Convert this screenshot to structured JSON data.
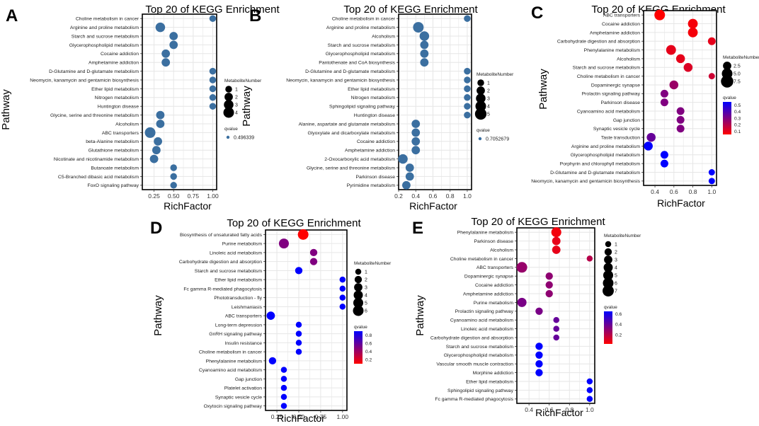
{
  "figure": {
    "panels": [
      {
        "letter": "A"
      },
      {
        "letter": "B"
      },
      {
        "letter": "C"
      },
      {
        "letter": "D"
      },
      {
        "letter": "E"
      }
    ],
    "colors": {
      "qblue": "#3b6fa0",
      "qlow": "#ff0000",
      "qhigh": "#0000ff",
      "grid": "#e6e6e6",
      "panel_bg": "#ffffff"
    }
  },
  "chart_data": [
    {
      "letter": "A",
      "type": "scatter",
      "title": "Top 20 of KEGG Enrichment",
      "xlabel": "RichFactor",
      "ylabel": "Pathway",
      "xlim": [
        0.1,
        1.05
      ],
      "xticks": [
        0.25,
        0.5,
        0.75,
        1.0
      ],
      "xtick_labels": [
        "0.25",
        "0.50",
        "0.75",
        "1.00"
      ],
      "color_mode": "single",
      "legend_size_title": "MetaboliteNumber",
      "legend_size_values": [
        1,
        2,
        3,
        4
      ],
      "legend_color_title": "qvalue",
      "legend_color_value": "0.496339",
      "pathways": [
        "Choline metabolism in cancer",
        "Arginine and proline metabolism",
        "Starch and sucrose metabolism",
        "Glycerophospholipid metabolism",
        "Cocaine addiction",
        "Amphetamine addiction",
        "D-Glutamine and D-glutamate metabolism",
        "Neomycin, kanamycin and gentamicin biosynthesis",
        "Ether lipid metabolism",
        "Nitrogen metabolism",
        "Huntington disease",
        "Glycine, serine and threonine metabolism",
        "Alcoholism",
        "ABC transporters",
        "beta-Alanine metabolism",
        "Glutathione metabolism",
        "Nicotinate and nicotinamide metabolism",
        "Butanoate metabolism",
        "C5-Branched dibasic acid metabolism",
        "FoxO signaling pathway"
      ],
      "richfactor": [
        1.0,
        0.33,
        0.5,
        0.5,
        0.4,
        0.4,
        1.0,
        1.0,
        1.0,
        1.0,
        1.0,
        0.33,
        0.33,
        0.2,
        0.3,
        0.28,
        0.25,
        0.5,
        0.5,
        0.5
      ],
      "count": [
        1,
        3,
        2,
        2,
        2,
        2,
        1,
        1,
        1,
        1,
        1,
        2,
        2,
        4,
        2,
        2,
        2,
        1,
        1,
        1
      ]
    },
    {
      "letter": "B",
      "type": "scatter",
      "title": "Top 20 of KEGG Enrichment",
      "xlabel": "RichFactor",
      "ylabel": "Pathway",
      "xlim": [
        0.2,
        1.05
      ],
      "xticks": [
        0.2,
        0.4,
        0.6,
        0.8,
        1.0
      ],
      "xtick_labels": [
        "0.2",
        "0.4",
        "0.6",
        "0.8",
        "1.0"
      ],
      "color_mode": "single",
      "legend_size_title": "MetaboliteNumber",
      "legend_size_values": [
        1,
        2,
        3,
        4,
        5
      ],
      "legend_color_title": "qvalue",
      "legend_color_value": "0.7052679",
      "pathways": [
        "Choline metabolism in cancer",
        "Arginine and proline metabolism",
        "Alcoholism",
        "Starch and sucrose metabolism",
        "Glycerophospholipid metabolism",
        "Pantothenate and CoA biosynthesis",
        "D-Glutamine and D-glutamate metabolism",
        "Neomycin, kanamycin and gentamicin biosynthesis",
        "Ether lipid metabolism",
        "Nitrogen metabolism",
        "Sphingolipid signaling pathway",
        "Huntington disease",
        "Alanine, aspartate and glutamate metabolism",
        "Glyoxylate and dicarboxylate metabolism",
        "Cocaine addiction",
        "Amphetamine addiction",
        "2-Oxocarboxylic acid metabolism",
        "Glycine, serine and threonine metabolism",
        "Parkinson disease",
        "Pyrimidine metabolism"
      ],
      "richfactor": [
        1.0,
        0.43,
        0.5,
        0.5,
        0.5,
        0.5,
        1.0,
        1.0,
        1.0,
        1.0,
        1.0,
        1.0,
        0.4,
        0.4,
        0.4,
        0.4,
        0.25,
        0.33,
        0.33,
        0.29
      ],
      "count": [
        1,
        4,
        3,
        2,
        2,
        2,
        1,
        1,
        1,
        1,
        1,
        1,
        2,
        2,
        2,
        2,
        3,
        2,
        2,
        2
      ]
    },
    {
      "letter": "C",
      "type": "scatter",
      "title": "Top 20 of KEGG Enrichment",
      "xlabel": "RichFactor",
      "ylabel": "Pathway",
      "xlim": [
        0.28,
        1.05
      ],
      "xticks": [
        0.4,
        0.6,
        0.8,
        1.0
      ],
      "xtick_labels": [
        "0.4",
        "0.6",
        "0.8",
        "1.0"
      ],
      "color_mode": "gradient",
      "legend_size_title": "MetaboliteNumber",
      "legend_size_values": [
        2.5,
        5.0,
        7.5
      ],
      "legend_size_labels": [
        "2.5",
        "5.0",
        "7.5"
      ],
      "legend_color_title": "qvalue",
      "legend_color_ticks": [
        "0.5",
        "0.4",
        "0.3",
        "0.2",
        "0.1"
      ],
      "qmin": 0.05,
      "qmax": 0.55,
      "pathways": [
        "ABC transporters",
        "Cocaine addiction",
        "Amphetamine addiction",
        "Carbohydrate digestion and absorption",
        "Phenylalanine metabolism",
        "Alcoholism",
        "Starch and sucrose metabolism",
        "Choline metabolism in cancer",
        "Dopaminergic synapse",
        "Prolactin signaling pathway",
        "Parkinson disease",
        "Cyanoamino acid metabolism",
        "Gap junction",
        "Synaptic vesicle cycle",
        "Taste transduction",
        "Arginine and proline metabolism",
        "Glycerophospholipid metabolism",
        "Porphyrin and chlorophyll metabolism",
        "D-Glutamine and D-glutamate metabolism",
        "Neomycin, kanamycin and gentamicin biosynthesis"
      ],
      "richfactor": [
        0.45,
        0.8,
        0.8,
        1.0,
        0.57,
        0.67,
        0.75,
        1.0,
        0.6,
        0.5,
        0.5,
        0.67,
        0.67,
        0.67,
        0.36,
        0.33,
        0.5,
        0.5,
        1.0,
        1.0
      ],
      "count": [
        5,
        4,
        4,
        2,
        4,
        3,
        3,
        1,
        3,
        2,
        2,
        2,
        2,
        2,
        3,
        3,
        2,
        2,
        1,
        1
      ],
      "qvalue": [
        0.05,
        0.07,
        0.07,
        0.1,
        0.1,
        0.1,
        0.12,
        0.15,
        0.25,
        0.3,
        0.3,
        0.3,
        0.3,
        0.3,
        0.35,
        0.55,
        0.55,
        0.55,
        0.55,
        0.55
      ]
    },
    {
      "letter": "D",
      "type": "scatter",
      "title": "Top 20 of KEGG Enrichment",
      "xlabel": "RichFactor",
      "ylabel": "Pathway",
      "xlim": [
        0.12,
        1.05
      ],
      "xticks": [
        0.25,
        0.5,
        0.75,
        1.0
      ],
      "xtick_labels": [
        "0.25",
        "0.50",
        "0.75",
        "1.00"
      ],
      "color_mode": "gradient",
      "legend_size_title": "MetaboliteNumber",
      "legend_size_values": [
        1,
        2,
        3,
        4,
        5,
        6
      ],
      "legend_color_title": "qvalue",
      "legend_color_ticks": [
        "0.8",
        "0.6",
        "0.4",
        "0.2"
      ],
      "qmin": 0.1,
      "qmax": 0.9,
      "pathways": [
        "Biosynthesis of unsaturated fatty acids",
        "Purine metabolism",
        "Linoleic acid metabolism",
        "Carbohydrate digestion and absorption",
        "Starch and sucrose metabolism",
        "Ether lipid metabolism",
        "Fc gamma R-mediated phagocytosis",
        "Phototransduction - fly",
        "Leishmaniasis",
        "ABC transporters",
        "Long-term depression",
        "GnRH signaling pathway",
        "Insulin resistance",
        "Choline metabolism in cancer",
        "Phenylalanine metabolism",
        "Cyanoamino acid metabolism",
        "Gap junction",
        "Platelet activation",
        "Synaptic vesicle cycle",
        "Oxytocin signaling pathway"
      ],
      "richfactor": [
        0.55,
        0.33,
        0.67,
        0.67,
        0.5,
        1.0,
        1.0,
        1.0,
        1.0,
        0.18,
        0.5,
        0.5,
        0.5,
        0.5,
        0.2,
        0.33,
        0.33,
        0.33,
        0.33,
        0.33
      ],
      "count": [
        6,
        5,
        2,
        2,
        2,
        1,
        1,
        1,
        1,
        3,
        1,
        1,
        1,
        1,
        2,
        1,
        1,
        1,
        1,
        1
      ],
      "qvalue": [
        0.1,
        0.5,
        0.5,
        0.5,
        0.9,
        0.9,
        0.9,
        0.9,
        0.9,
        0.9,
        0.9,
        0.9,
        0.9,
        0.9,
        0.9,
        0.9,
        0.9,
        0.9,
        0.9,
        0.9
      ]
    },
    {
      "letter": "E",
      "type": "scatter",
      "title": "Top 20 of KEGG Enrichment",
      "xlabel": "RichFactor",
      "ylabel": "Pathway",
      "xlim": [
        0.28,
        1.05
      ],
      "xticks": [
        0.4,
        0.6,
        0.8,
        1.0
      ],
      "xtick_labels": [
        "0.4",
        "0.6",
        "0.8",
        "1.0"
      ],
      "color_mode": "gradient",
      "legend_size_title": "MetaboliteNumber",
      "legend_size_values": [
        1,
        2,
        3,
        4,
        5,
        6,
        7
      ],
      "legend_color_title": "qvalue",
      "legend_color_ticks": [
        "0.6",
        "0.4",
        "0.2"
      ],
      "qmin": 0.02,
      "qmax": 0.65,
      "pathways": [
        "Phenylalanine metabolism",
        "Parkinson disease",
        "Alcoholism",
        "Choline metabolism in cancer",
        "ABC transporters",
        "Dopaminergic synapse",
        "Cocaine addiction",
        "Amphetamine addiction",
        "Purine metabolism",
        "Prolactin signaling pathway",
        "Cyanoamino acid metabolism",
        "Linoleic acid metabolism",
        "Carbohydrate digestion and absorption",
        "Starch and sucrose metabolism",
        "Glycerophospholipid metabolism",
        "Vascular smooth muscle contraction",
        "Morphine addiction",
        "Ether lipid metabolism",
        "Sphingolipid signaling pathway",
        "Fc gamma R-mediated phagocytosis"
      ],
      "richfactor": [
        0.67,
        0.67,
        0.67,
        1.0,
        0.33,
        0.6,
        0.6,
        0.6,
        0.33,
        0.5,
        0.67,
        0.67,
        0.67,
        0.5,
        0.5,
        0.5,
        0.5,
        1.0,
        1.0,
        1.0
      ],
      "count": [
        5,
        3,
        3,
        1,
        6,
        2,
        2,
        2,
        4,
        2,
        1,
        1,
        1,
        2,
        2,
        2,
        2,
        1,
        1,
        1
      ],
      "qvalue": [
        0.05,
        0.08,
        0.08,
        0.2,
        0.28,
        0.3,
        0.3,
        0.3,
        0.35,
        0.35,
        0.4,
        0.4,
        0.4,
        0.65,
        0.65,
        0.65,
        0.65,
        0.65,
        0.65,
        0.65
      ]
    }
  ]
}
